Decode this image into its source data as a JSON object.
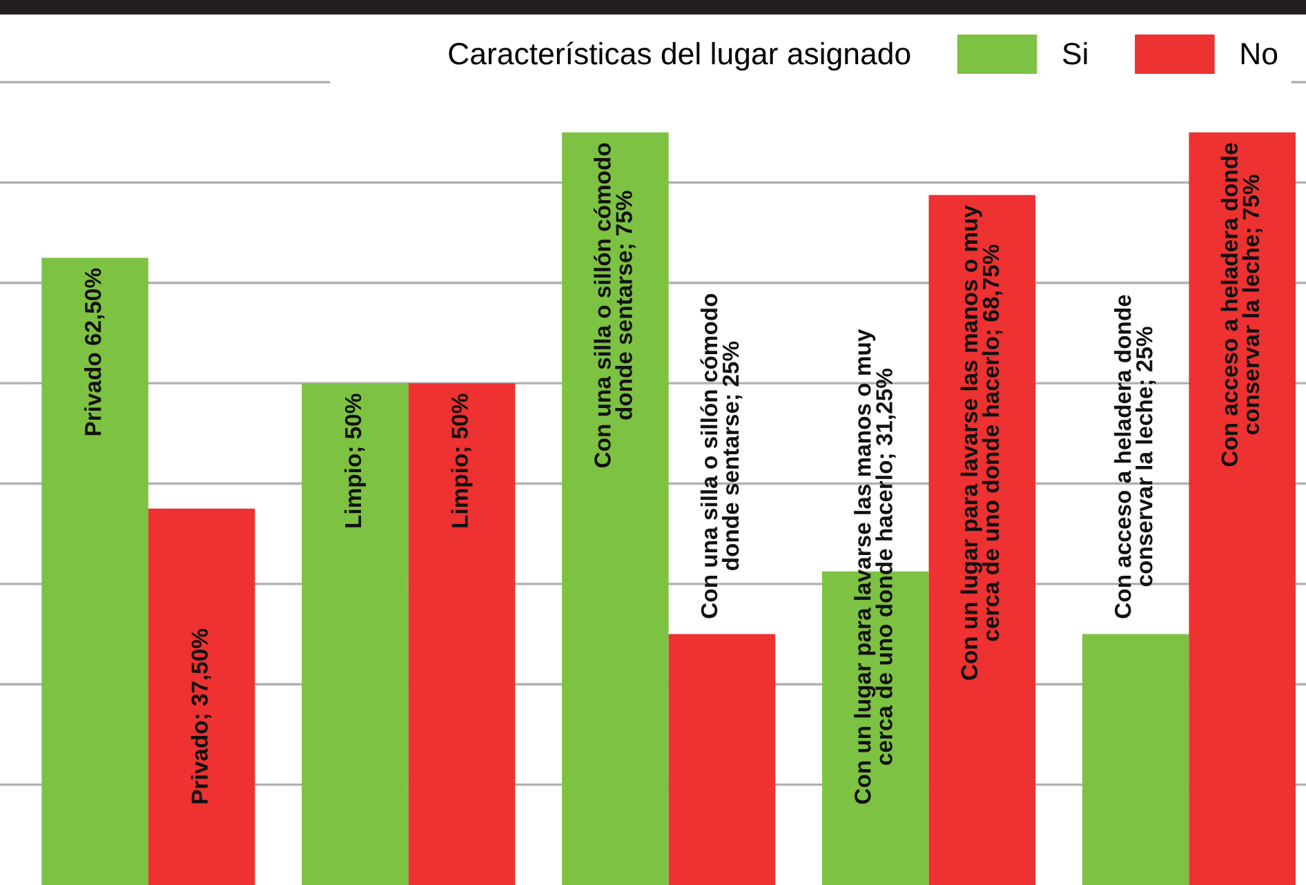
{
  "chart_data": {
    "type": "bar",
    "legend_title": "Características del lugar asignado",
    "categories": [
      null,
      null,
      null,
      null,
      null
    ],
    "series": [
      {
        "name": "Si",
        "color": "#7dc242",
        "values": [
          62.5,
          50,
          75,
          31.25,
          25
        ],
        "value_labels": [
          "Privado 62,50%",
          "Limpio; 50%",
          "Con una silla o sillón cómodo\ndonde sentarse; 75%",
          "Con un lugar para lavarse las manos o muy\ncerca de uno donde hacerlo; 31,25%",
          "Con acceso a heladera donde\nconservar la leche; 25%"
        ]
      },
      {
        "name": "No",
        "color": "#ee3131",
        "values": [
          37.5,
          50,
          25,
          68.75,
          75
        ],
        "value_labels": [
          "Privado; 37,50%",
          "Limpio; 50%",
          "Con una silla o sillón cómodo\ndonde sentarse; 25%",
          "Con un lugar para lavarse las manos o muy\ncerca de uno donde hacerlo; 68,75%",
          "Con acceso a heladera donde\nconservar la leche; 75%"
        ]
      }
    ],
    "ylim": [
      0,
      87.5
    ],
    "yticks": [
      {
        "value": 10,
        "label": null
      },
      {
        "value": 20,
        "label": null
      },
      {
        "value": 30,
        "label": null
      },
      {
        "value": 40,
        "label": null
      },
      {
        "value": 50,
        "label": null
      },
      {
        "value": 60,
        "label": null
      },
      {
        "value": 70,
        "label": null
      },
      {
        "value": 80,
        "label": null
      }
    ],
    "grid": "y",
    "legend": "top right"
  }
}
